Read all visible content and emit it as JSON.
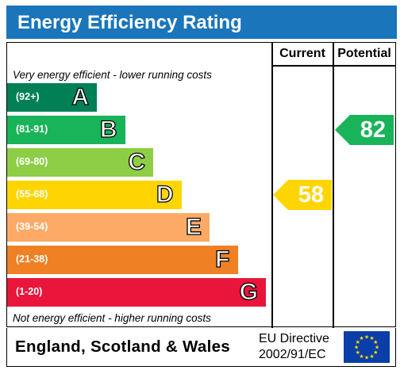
{
  "title": "Energy Efficiency Rating",
  "columns": {
    "current": "Current",
    "potential": "Potential"
  },
  "notes": {
    "top": "Very energy efficient - lower running costs",
    "bottom": "Not energy efficient - higher running costs"
  },
  "chart_data": {
    "type": "bar",
    "categories": [
      "A",
      "B",
      "C",
      "D",
      "E",
      "F",
      "G"
    ],
    "ranges": [
      "(92+)",
      "(81-91)",
      "(69-80)",
      "(55-68)",
      "(39-54)",
      "(21-38)",
      "(1-20)"
    ],
    "band_minimums": [
      92,
      81,
      69,
      55,
      39,
      21,
      1
    ],
    "colors": [
      "#008054",
      "#19b459",
      "#8dce46",
      "#ffd500",
      "#fcaa65",
      "#ef8023",
      "#e9153b"
    ],
    "current": {
      "value": 58,
      "band": "D",
      "color": "#ffd500"
    },
    "potential": {
      "value": 82,
      "band": "B",
      "color": "#19b459"
    }
  },
  "footer": {
    "country": "England, Scotland & Wales",
    "directive_line1": "EU Directive",
    "directive_line2": "2002/91/EC",
    "flag_icon": "eu-flag-icon"
  }
}
